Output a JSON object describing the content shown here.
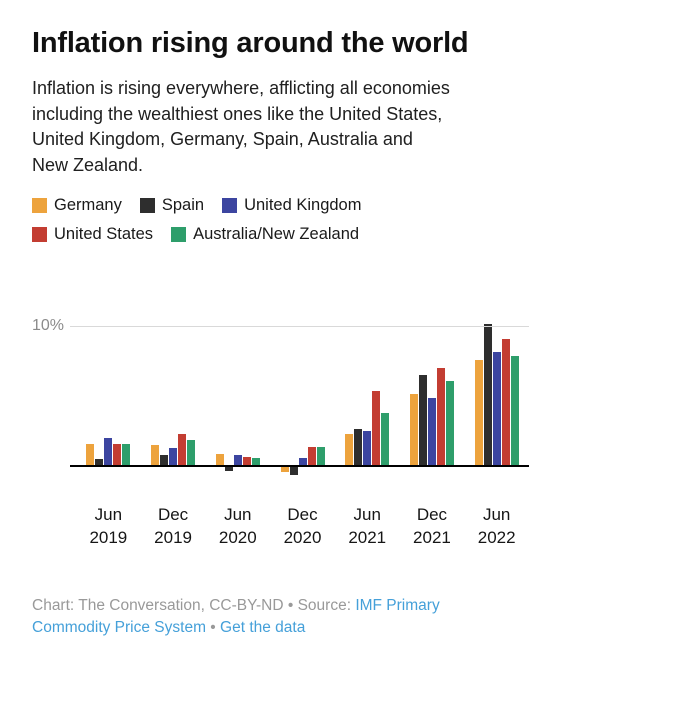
{
  "page": {
    "title": "Inflation rising around the world",
    "subtitle": "Inflation is rising everywhere, afflicting all economies including the wealthiest ones like the United States, United Kingdom, Germany, Spain, Australia and New Zealand.",
    "footer": {
      "prefix": "Chart: The Conversation, CC-BY-ND • Source: ",
      "source_link": "IMF Primary Commodity Price System",
      "separator": " • ",
      "data_link": "Get the data",
      "text_color": "#999999",
      "link_color": "#45a0d9"
    }
  },
  "chart_data": {
    "type": "bar",
    "title": "Inflation rising around the world",
    "categories": [
      "Jun 2019",
      "Dec 2019",
      "Jun 2020",
      "Dec 2020",
      "Jun 2021",
      "Dec 2021",
      "Jun 2022"
    ],
    "series": [
      {
        "name": "Germany",
        "color": "#eda33d",
        "values": [
          1.6,
          1.5,
          0.9,
          -0.4,
          2.3,
          5.2,
          7.6
        ]
      },
      {
        "name": "Spain",
        "color": "#2e2e2e",
        "values": [
          0.5,
          0.8,
          -0.3,
          -0.6,
          2.7,
          6.5,
          10.2
        ]
      },
      {
        "name": "United Kingdom",
        "color": "#3c45a0",
        "values": [
          2.0,
          1.3,
          0.8,
          0.6,
          2.5,
          4.9,
          8.2
        ]
      },
      {
        "name": "United States",
        "color": "#c33d32",
        "values": [
          1.6,
          2.3,
          0.7,
          1.4,
          5.4,
          7.0,
          9.1
        ]
      },
      {
        "name": "Australia/New Zealand",
        "color": "#2e9e6b",
        "values": [
          1.6,
          1.9,
          0.6,
          1.4,
          3.8,
          6.1,
          7.9
        ]
      }
    ],
    "xlabel": "",
    "ylabel": "",
    "y_tick_label": "10%",
    "ylim": [
      -1,
      10.5
    ],
    "grid": "single horizontal gridline at 10%",
    "legend_position": "top",
    "units": "percent"
  }
}
